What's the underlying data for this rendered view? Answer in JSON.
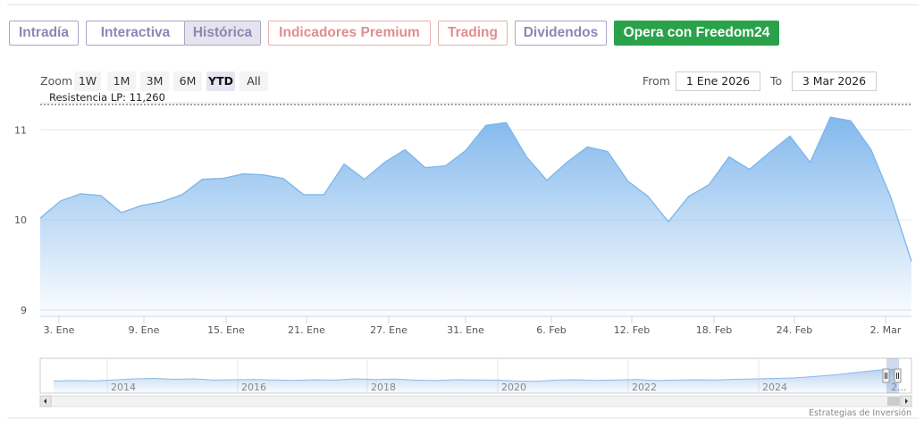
{
  "tabs": [
    {
      "label": "Intradía"
    },
    {
      "label": "Interactiva"
    },
    {
      "label": "Histórica"
    },
    {
      "label": "Indicadores Premium"
    },
    {
      "label": "Trading"
    },
    {
      "label": "Dividendos"
    },
    {
      "label": "Opera con Freedom24"
    }
  ],
  "zoom": {
    "label": "Zoom",
    "buttons": [
      "1W",
      "1M",
      "3M",
      "6M",
      "YTD",
      "All"
    ],
    "active": "YTD"
  },
  "range": {
    "from_label": "From",
    "from_value": "1 Ene 2026",
    "to_label": "To",
    "to_value": "3 Mar 2026"
  },
  "credit": "Estrategias de Inversión",
  "colors": {
    "line": "#7cb5ec",
    "fill_top": "#7cb5ec",
    "resistance": "#333333",
    "freedom_green": "#2aa24a"
  },
  "chart_data": [
    {
      "type": "area",
      "x_ticks": [
        "3. Ene",
        "9. Ene",
        "15. Ene",
        "21. Ene",
        "27. Ene",
        "31. Ene",
        "6. Feb",
        "12. Feb",
        "18. Feb",
        "24. Feb",
        "2. Mar"
      ],
      "y_ticks": [
        "9",
        "10",
        "11"
      ],
      "ylim": [
        8.93,
        11.3
      ],
      "resistance": {
        "label": "Resistencia LP: 11,260",
        "value": 11.26
      },
      "grid": true,
      "legend": "none",
      "values": [
        10.02,
        10.21,
        10.29,
        10.27,
        10.08,
        10.16,
        10.2,
        10.28,
        10.45,
        10.46,
        10.51,
        10.5,
        10.46,
        10.28,
        10.28,
        10.62,
        10.45,
        10.64,
        10.78,
        10.58,
        10.6,
        10.77,
        11.05,
        11.08,
        10.7,
        10.44,
        10.64,
        10.81,
        10.76,
        10.43,
        10.26,
        9.98,
        10.26,
        10.39,
        10.7,
        10.56,
        10.75,
        10.93,
        10.64,
        11.14,
        11.1,
        10.78,
        10.24,
        9.54
      ]
    },
    {
      "type": "area",
      "x_ticks": [
        "2014",
        "2016",
        "2018",
        "2020",
        "2022",
        "2024",
        "2..."
      ],
      "values": [
        0.4,
        0.42,
        0.41,
        0.45,
        0.5,
        0.52,
        0.48,
        0.5,
        0.44,
        0.46,
        0.47,
        0.45,
        0.43,
        0.46,
        0.44,
        0.5,
        0.47,
        0.49,
        0.44,
        0.42,
        0.46,
        0.45,
        0.44,
        0.4,
        0.38,
        0.44,
        0.46,
        0.43,
        0.45,
        0.47,
        0.42,
        0.44,
        0.46,
        0.45,
        0.48,
        0.5,
        0.52,
        0.55,
        0.62,
        0.7,
        0.8,
        0.9,
        0.95
      ]
    }
  ]
}
